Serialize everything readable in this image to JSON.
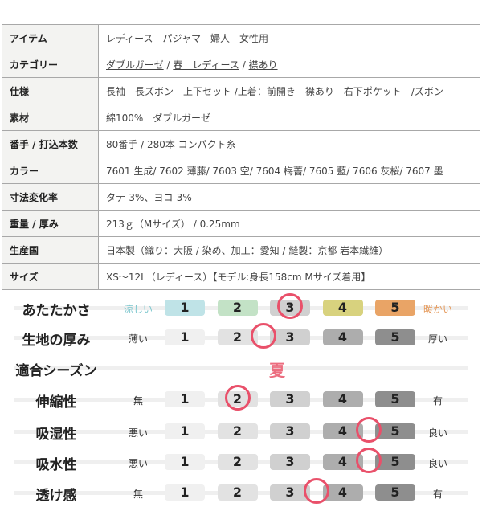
{
  "spec_table": [
    {
      "key": "アイテム",
      "value": "レディース　パジャマ　婦人　女性用"
    },
    {
      "key": "カテゴリー",
      "links": [
        "ダブルガーゼ",
        "春　レディース",
        "襟あり"
      ],
      "separator": " / "
    },
    {
      "key": "仕様",
      "value": "長袖　長ズボン　上下セット /上着：前開き　襟あり　右下ポケット　/ズボン"
    },
    {
      "key": "素材",
      "value": "綿100%　ダブルガーゼ"
    },
    {
      "key": "番手 / 打込本数",
      "value": "80番手 / 280本 コンパクト糸"
    },
    {
      "key": "カラー",
      "value": "7601 生成/ 7602 薄藤/ 7603 空/ 7604 梅薔/ 7605 藍/ 7606 灰桜/ 7607 墨"
    },
    {
      "key": "寸法変化率",
      "value": "タテ-3%、ヨコ-3%"
    },
    {
      "key": "重量 / 厚み",
      "value": "213ｇ（Mサイズ） / 0.25mm"
    },
    {
      "key": "生産国",
      "value": "日本製（織り：大阪 / 染め、加工：愛知 / 縫製：京都 岩本繊維）"
    },
    {
      "key": "サイズ",
      "value": "XS～12L（レディース）【モデル:身長158cm Mサイズ着用】"
    }
  ],
  "ratings": {
    "scale": [
      "1",
      "2",
      "3",
      "4",
      "5"
    ],
    "marker_color": "#e9506a",
    "gray_colors": [
      "#f0f0f0",
      "#e2e2e2",
      "#d0d0d0",
      "#adadad",
      "#8e8e8e"
    ],
    "rows": [
      {
        "label": "あたたかさ",
        "low": "涼しい",
        "high": "暖かい",
        "value": 3,
        "low_color": "#7fc8cf",
        "high_color": "#e59a5c",
        "colors": [
          "#bfe3e7",
          "#c3e2c6",
          "#d0d0d0",
          "#d8d27e",
          "#e9a466"
        ]
      },
      {
        "label": "生地の厚み",
        "low": "薄い",
        "high": "厚い",
        "value": 2.5
      },
      {
        "label": "適合シーズン",
        "season": "夏"
      },
      {
        "label": "伸縮性",
        "low": "無",
        "high": "有",
        "value": 2
      },
      {
        "label": "吸湿性",
        "low": "悪い",
        "high": "良い",
        "value": 4.5
      },
      {
        "label": "吸水性",
        "low": "悪い",
        "high": "良い",
        "value": 4.5
      },
      {
        "label": "透け感",
        "low": "無",
        "high": "有",
        "value": 3.5
      }
    ]
  }
}
